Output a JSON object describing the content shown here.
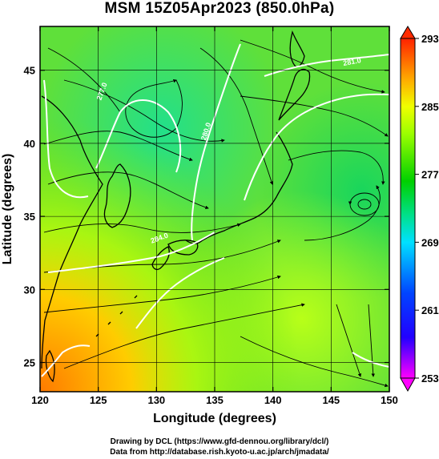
{
  "title": "MSM 15Z05Apr2023 (850.0hPa)",
  "x_axis": {
    "label": "Longitude (degrees)",
    "range": [
      120,
      150
    ],
    "ticks": [
      120,
      125,
      130,
      135,
      140,
      145,
      150
    ]
  },
  "y_axis": {
    "label": "Latitude  (degrees)",
    "range": [
      23,
      48
    ],
    "ticks": [
      25,
      30,
      35,
      40,
      45
    ]
  },
  "colorbar": {
    "range": [
      253,
      293
    ],
    "ticks": [
      253,
      261,
      269,
      277,
      285,
      293
    ],
    "colors": [
      "#ff00ff",
      "#0000ff",
      "#00e5ff",
      "#00d200",
      "#e6ff00",
      "#ff9900",
      "#ff2a00"
    ]
  },
  "contour_labels": [
    "277.0",
    "280.0",
    "281.0",
    "284.0"
  ],
  "credits": {
    "line1": "Drawing by DCL (https://www.gfd-dennou.org/library/dcl/)",
    "line2": "Data from http://database.rish.kyoto-u.ac.jp/arch/jmadata/"
  }
}
